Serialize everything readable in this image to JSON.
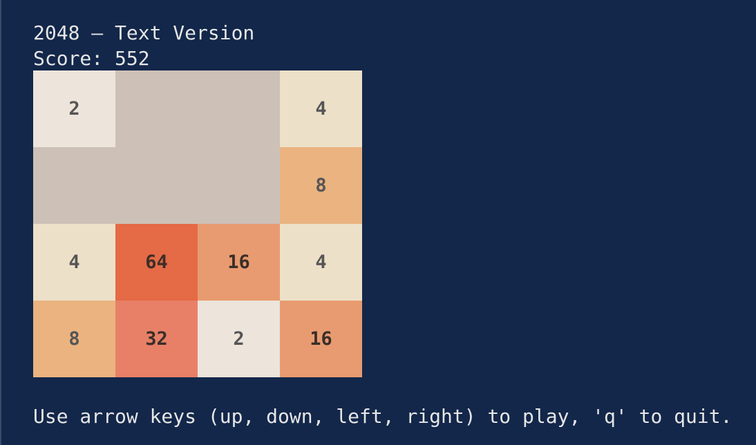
{
  "header": {
    "title": "2048 – Text Version",
    "score_text": "Score: 552"
  },
  "board": {
    "rows": [
      [
        {
          "value": "2",
          "color": "#ede4db"
        },
        {
          "value": "",
          "color": "#cdc1b7"
        },
        {
          "value": "",
          "color": "#cdc1b7"
        },
        {
          "value": "4",
          "color": "#ede0c8"
        }
      ],
      [
        {
          "value": "",
          "color": "#cdc1b7"
        },
        {
          "value": "",
          "color": "#cdc1b7"
        },
        {
          "value": "",
          "color": "#cdc1b7"
        },
        {
          "value": "8",
          "color": "#eab380"
        }
      ],
      [
        {
          "value": "4",
          "color": "#ede0c8"
        },
        {
          "value": "64",
          "color": "#e56a46"
        },
        {
          "value": "16",
          "color": "#e89b70"
        },
        {
          "value": "4",
          "color": "#ede0c8"
        }
      ],
      [
        {
          "value": "8",
          "color": "#eab380"
        },
        {
          "value": "32",
          "color": "#e88068"
        },
        {
          "value": "2",
          "color": "#ede4db"
        },
        {
          "value": "16",
          "color": "#e89b70"
        }
      ]
    ]
  },
  "footer": {
    "instructions": "Use arrow keys (up, down, left, right) to play, 'q' to quit."
  },
  "colors": {
    "background": "#13274a",
    "text": "#e6e6e6"
  }
}
